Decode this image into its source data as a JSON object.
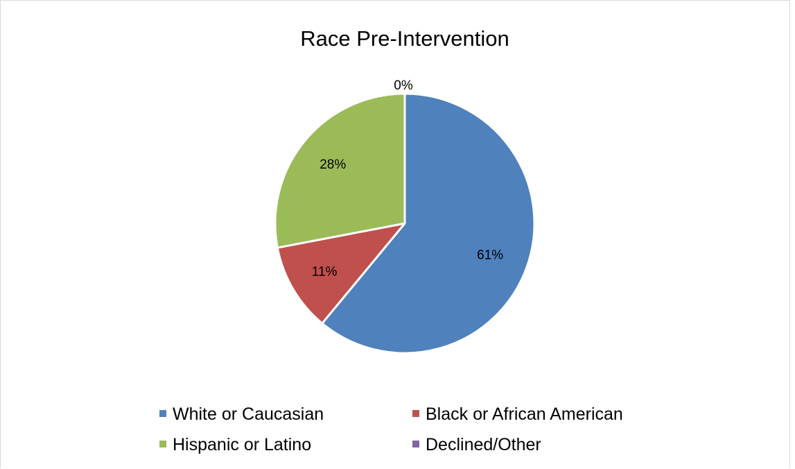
{
  "chart_data": {
    "type": "pie",
    "title": "Race Pre-Intervention",
    "categories": [
      "White or Caucasian",
      "Black or African American",
      "Hispanic or Latino",
      "Declined/Other"
    ],
    "values": [
      61,
      11,
      28,
      0
    ],
    "labels": [
      "61%",
      "11%",
      "28%",
      "0%"
    ],
    "colors": [
      "#4f81bd",
      "#c0504d",
      "#9bbb59",
      "#8064a2"
    ],
    "legend_position": "bottom"
  }
}
